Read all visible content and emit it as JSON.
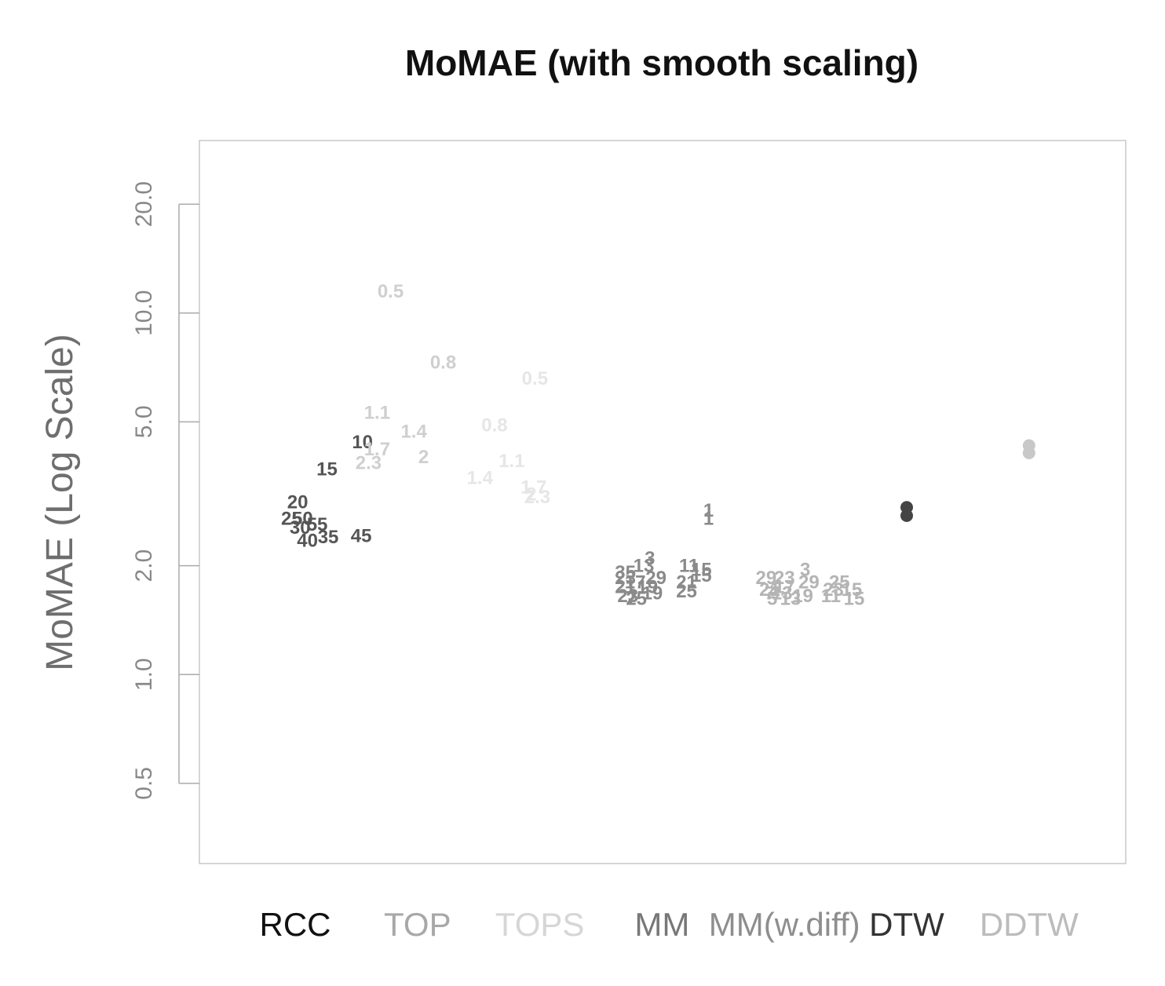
{
  "chart_data": {
    "type": "scatter",
    "title": "MoMAE (with smooth scaling)",
    "xlabel": "",
    "ylabel": "MoMAE (Log Scale)",
    "yscale": "log",
    "ylim": [
      0.3,
      30
    ],
    "yticks": [
      {
        "value": 0.5,
        "label": "0.5"
      },
      {
        "value": 1.0,
        "label": "1.0"
      },
      {
        "value": 2.0,
        "label": "2.0"
      },
      {
        "value": 5.0,
        "label": "5.0"
      },
      {
        "value": 10.0,
        "label": "10.0"
      },
      {
        "value": 20.0,
        "label": "20.0"
      }
    ],
    "categories": [
      {
        "label": "RCC",
        "color": "#111111"
      },
      {
        "label": "TOP",
        "color": "#a8a8a8"
      },
      {
        "label": "TOPS",
        "color": "#d6d6d6"
      },
      {
        "label": "MM",
        "color": "#777777"
      },
      {
        "label": "MM(w.diff)",
        "color": "#8e8e8e"
      },
      {
        "label": "DTW",
        "color": "#333333"
      },
      {
        "label": "DDTW",
        "color": "#bcbcbc"
      }
    ],
    "series": [
      {
        "name": "RCC",
        "color": "#555555",
        "points": [
          {
            "x": 1.55,
            "y": 4.4,
            "label": "10"
          },
          {
            "x": 1.26,
            "y": 3.7,
            "label": "15"
          },
          {
            "x": 1.02,
            "y": 3.0,
            "label": "20"
          },
          {
            "x": 0.97,
            "y": 2.7,
            "label": "25"
          },
          {
            "x": 1.04,
            "y": 2.55,
            "label": "30"
          },
          {
            "x": 1.27,
            "y": 2.4,
            "label": "35"
          },
          {
            "x": 1.1,
            "y": 2.35,
            "label": "40"
          },
          {
            "x": 1.54,
            "y": 2.42,
            "label": "45"
          },
          {
            "x": 1.06,
            "y": 2.7,
            "label": "50"
          },
          {
            "x": 1.18,
            "y": 2.6,
            "label": "55"
          }
        ]
      },
      {
        "name": "TOP",
        "color": "#cfcfcf",
        "points": [
          {
            "x": 1.78,
            "y": 11.5,
            "label": "0.5"
          },
          {
            "x": 2.21,
            "y": 7.3,
            "label": "0.8"
          },
          {
            "x": 1.67,
            "y": 5.3,
            "label": "1.1"
          },
          {
            "x": 1.97,
            "y": 4.7,
            "label": "1.4"
          },
          {
            "x": 1.67,
            "y": 4.2,
            "label": "1.7"
          },
          {
            "x": 2.05,
            "y": 4.0,
            "label": "2"
          },
          {
            "x": 1.6,
            "y": 3.85,
            "label": "2.3"
          }
        ]
      },
      {
        "name": "TOPS",
        "color": "#e6e6e6",
        "points": [
          {
            "x": 2.96,
            "y": 6.6,
            "label": "0.5"
          },
          {
            "x": 2.63,
            "y": 4.9,
            "label": "0.8"
          },
          {
            "x": 2.77,
            "y": 3.9,
            "label": "1.1"
          },
          {
            "x": 2.51,
            "y": 3.5,
            "label": "1.4"
          },
          {
            "x": 2.95,
            "y": 3.3,
            "label": "1.7"
          },
          {
            "x": 2.93,
            "y": 3.15,
            "label": "2"
          },
          {
            "x": 2.98,
            "y": 3.1,
            "label": "2.3"
          }
        ]
      },
      {
        "name": "MM",
        "color": "#8a8a8a",
        "points": [
          {
            "x": 4.38,
            "y": 2.85,
            "label": "1"
          },
          {
            "x": 4.38,
            "y": 2.7,
            "label": "1"
          },
          {
            "x": 3.9,
            "y": 2.1,
            "label": "3"
          },
          {
            "x": 3.85,
            "y": 2.0,
            "label": "13"
          },
          {
            "x": 4.22,
            "y": 2.0,
            "label": "11"
          },
          {
            "x": 4.32,
            "y": 1.95,
            "label": "15"
          },
          {
            "x": 4.32,
            "y": 1.88,
            "label": "15"
          },
          {
            "x": 3.7,
            "y": 1.92,
            "label": "35"
          },
          {
            "x": 3.7,
            "y": 1.85,
            "label": "23"
          },
          {
            "x": 3.95,
            "y": 1.85,
            "label": "29"
          },
          {
            "x": 3.78,
            "y": 1.8,
            "label": "17"
          },
          {
            "x": 4.2,
            "y": 1.8,
            "label": "21"
          },
          {
            "x": 3.7,
            "y": 1.75,
            "label": "21"
          },
          {
            "x": 3.88,
            "y": 1.75,
            "label": "19"
          },
          {
            "x": 4.2,
            "y": 1.7,
            "label": "25"
          },
          {
            "x": 3.92,
            "y": 1.68,
            "label": "19"
          },
          {
            "x": 3.72,
            "y": 1.65,
            "label": "23"
          },
          {
            "x": 3.75,
            "y": 1.62,
            "label": "7"
          },
          {
            "x": 3.79,
            "y": 1.62,
            "label": "25"
          }
        ]
      },
      {
        "name": "MM(w.diff)",
        "color": "#b4b4b4",
        "points": [
          {
            "x": 5.17,
            "y": 1.95,
            "label": "3"
          },
          {
            "x": 4.85,
            "y": 1.85,
            "label": "29"
          },
          {
            "x": 5.0,
            "y": 1.85,
            "label": "23"
          },
          {
            "x": 5.2,
            "y": 1.8,
            "label": "29"
          },
          {
            "x": 5.45,
            "y": 1.8,
            "label": "25"
          },
          {
            "x": 5.0,
            "y": 1.75,
            "label": "17"
          },
          {
            "x": 5.4,
            "y": 1.72,
            "label": "23"
          },
          {
            "x": 4.88,
            "y": 1.72,
            "label": "21"
          },
          {
            "x": 5.55,
            "y": 1.72,
            "label": "15"
          },
          {
            "x": 4.88,
            "y": 1.68,
            "label": "7"
          },
          {
            "x": 4.98,
            "y": 1.68,
            "label": "13"
          },
          {
            "x": 5.15,
            "y": 1.65,
            "label": "19"
          },
          {
            "x": 5.38,
            "y": 1.65,
            "label": "11"
          },
          {
            "x": 5.57,
            "y": 1.62,
            "label": "15"
          },
          {
            "x": 4.9,
            "y": 1.62,
            "label": "5"
          },
          {
            "x": 5.05,
            "y": 1.62,
            "label": "13"
          }
        ]
      },
      {
        "name": "DTW",
        "color": "#444444",
        "marker": "dot",
        "points": [
          {
            "x": 6.0,
            "y": 2.9,
            "label": ""
          },
          {
            "x": 6.0,
            "y": 2.75,
            "label": ""
          }
        ]
      },
      {
        "name": "DDTW",
        "color": "#c8c8c8",
        "marker": "dot",
        "points": [
          {
            "x": 7.0,
            "y": 4.3,
            "label": ""
          },
          {
            "x": 7.0,
            "y": 4.1,
            "label": ""
          }
        ]
      }
    ]
  }
}
